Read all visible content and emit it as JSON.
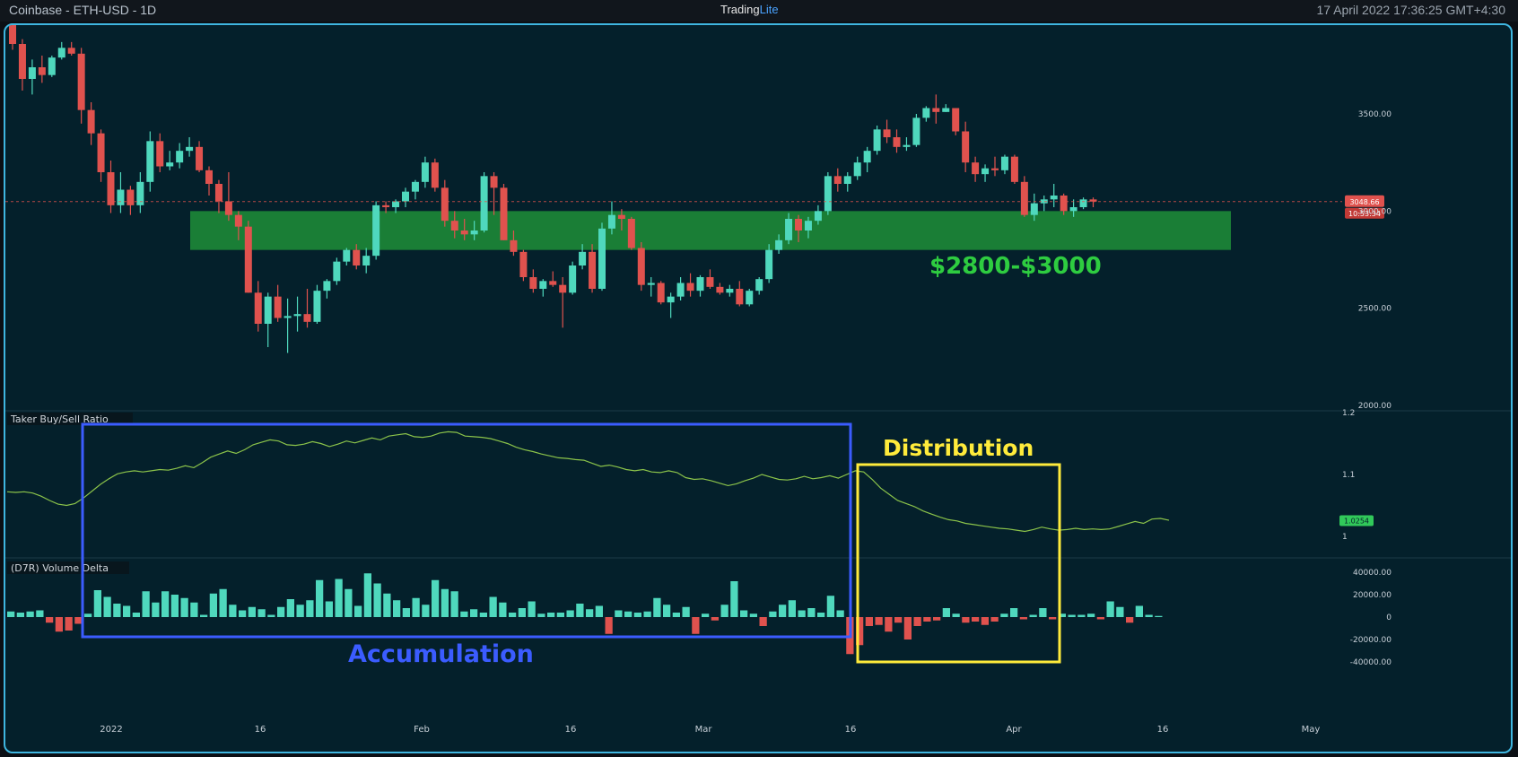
{
  "header": {
    "symbol": "Coinbase - ETH-USD - 1D",
    "brand_prefix": "Trading",
    "brand_suffix": "Lite",
    "datetime": "17 April 2022 17:36:25 GMT+4:30"
  },
  "chart_data": [
    {
      "type": "candlestick",
      "price_axis": {
        "min": 2000,
        "max": 4000,
        "ticks": [
          2000,
          2500,
          3000,
          3500
        ],
        "tick_labels": [
          "2000.00",
          "2500.00",
          "3000.00",
          "3500.00"
        ]
      },
      "time_axis": {
        "labels": [
          "2022",
          "16",
          "Feb",
          "16",
          "Mar",
          "16",
          "Apr",
          "16",
          "May"
        ]
      },
      "current_price": {
        "value": 3048.66,
        "label": "3048.66",
        "countdown": "10:53:34"
      },
      "support_zone": {
        "low": 2800,
        "high": 3000,
        "label": "$2800-$3000",
        "color": "#2ecc40"
      },
      "colors": {
        "up": "#4fd8bd",
        "down": "#e0524e"
      },
      "candles_ohlc": [
        [
          3975,
          4010,
          3830,
          3860
        ],
        [
          3860,
          3885,
          3620,
          3680
        ],
        [
          3680,
          3780,
          3600,
          3740
        ],
        [
          3740,
          3800,
          3660,
          3700
        ],
        [
          3700,
          3800,
          3690,
          3790
        ],
        [
          3790,
          3870,
          3780,
          3840
        ],
        [
          3840,
          3870,
          3800,
          3810
        ],
        [
          3810,
          3840,
          3450,
          3520
        ],
        [
          3520,
          3560,
          3340,
          3400
        ],
        [
          3400,
          3420,
          3150,
          3200
        ],
        [
          3200,
          3260,
          2990,
          3030
        ],
        [
          3030,
          3200,
          2990,
          3110
        ],
        [
          3110,
          3130,
          2980,
          3030
        ],
        [
          3030,
          3200,
          2990,
          3150
        ],
        [
          3150,
          3410,
          3100,
          3360
        ],
        [
          3360,
          3400,
          3200,
          3230
        ],
        [
          3230,
          3310,
          3210,
          3250
        ],
        [
          3250,
          3350,
          3220,
          3310
        ],
        [
          3310,
          3380,
          3280,
          3330
        ],
        [
          3330,
          3360,
          3200,
          3210
        ],
        [
          3210,
          3230,
          3080,
          3140
        ],
        [
          3140,
          3160,
          2990,
          3050
        ],
        [
          3050,
          3200,
          2950,
          2980
        ],
        [
          2980,
          3000,
          2850,
          2920
        ],
        [
          2920,
          2950,
          2580,
          2580
        ],
        [
          2580,
          2640,
          2380,
          2420
        ],
        [
          2420,
          2580,
          2300,
          2560
        ],
        [
          2560,
          2620,
          2430,
          2450
        ],
        [
          2450,
          2550,
          2270,
          2460
        ],
        [
          2460,
          2560,
          2380,
          2470
        ],
        [
          2470,
          2600,
          2400,
          2430
        ],
        [
          2430,
          2620,
          2420,
          2590
        ],
        [
          2590,
          2650,
          2550,
          2640
        ],
        [
          2640,
          2760,
          2620,
          2740
        ],
        [
          2740,
          2810,
          2720,
          2800
        ],
        [
          2800,
          2830,
          2700,
          2720
        ],
        [
          2720,
          2810,
          2680,
          2770
        ],
        [
          2770,
          3050,
          2750,
          3030
        ],
        [
          3030,
          3050,
          2990,
          3020
        ],
        [
          3020,
          3060,
          2990,
          3050
        ],
        [
          3050,
          3120,
          3020,
          3100
        ],
        [
          3100,
          3160,
          3060,
          3150
        ],
        [
          3150,
          3280,
          3120,
          3250
        ],
        [
          3250,
          3270,
          3100,
          3120
        ],
        [
          3120,
          3160,
          2920,
          2950
        ],
        [
          2950,
          3000,
          2860,
          2900
        ],
        [
          2900,
          2960,
          2850,
          2880
        ],
        [
          2880,
          2950,
          2850,
          2900
        ],
        [
          2900,
          3200,
          2890,
          3180
        ],
        [
          3180,
          3200,
          2980,
          3120
        ],
        [
          3120,
          3140,
          2850,
          2850
        ],
        [
          2850,
          2900,
          2770,
          2790
        ],
        [
          2790,
          2800,
          2640,
          2660
        ],
        [
          2660,
          2700,
          2580,
          2600
        ],
        [
          2600,
          2650,
          2560,
          2640
        ],
        [
          2640,
          2690,
          2610,
          2620
        ],
        [
          2620,
          2660,
          2400,
          2580
        ],
        [
          2580,
          2740,
          2570,
          2720
        ],
        [
          2720,
          2830,
          2700,
          2790
        ],
        [
          2790,
          2830,
          2580,
          2600
        ],
        [
          2600,
          2940,
          2590,
          2910
        ],
        [
          2910,
          3050,
          2880,
          2980
        ],
        [
          2980,
          3010,
          2900,
          2960
        ],
        [
          2960,
          2970,
          2800,
          2810
        ],
        [
          2810,
          2840,
          2590,
          2620
        ],
        [
          2620,
          2660,
          2560,
          2630
        ],
        [
          2630,
          2640,
          2520,
          2530
        ],
        [
          2530,
          2580,
          2450,
          2560
        ],
        [
          2560,
          2660,
          2540,
          2630
        ],
        [
          2630,
          2680,
          2560,
          2590
        ],
        [
          2590,
          2670,
          2560,
          2660
        ],
        [
          2660,
          2700,
          2600,
          2610
        ],
        [
          2610,
          2630,
          2570,
          2580
        ],
        [
          2580,
          2620,
          2560,
          2600
        ],
        [
          2600,
          2640,
          2510,
          2520
        ],
        [
          2520,
          2600,
          2510,
          2590
        ],
        [
          2590,
          2660,
          2570,
          2650
        ],
        [
          2650,
          2830,
          2630,
          2800
        ],
        [
          2800,
          2880,
          2780,
          2850
        ],
        [
          2850,
          2990,
          2830,
          2960
        ],
        [
          2960,
          2980,
          2840,
          2900
        ],
        [
          2900,
          2970,
          2860,
          2950
        ],
        [
          2950,
          3030,
          2930,
          3000
        ],
        [
          3000,
          3200,
          2980,
          3180
        ],
        [
          3180,
          3220,
          3100,
          3140
        ],
        [
          3140,
          3200,
          3100,
          3180
        ],
        [
          3180,
          3280,
          3160,
          3250
        ],
        [
          3250,
          3330,
          3200,
          3310
        ],
        [
          3310,
          3440,
          3290,
          3420
        ],
        [
          3420,
          3470,
          3350,
          3380
        ],
        [
          3380,
          3420,
          3300,
          3330
        ],
        [
          3330,
          3380,
          3310,
          3340
        ],
        [
          3340,
          3500,
          3330,
          3480
        ],
        [
          3480,
          3540,
          3460,
          3530
        ],
        [
          3530,
          3600,
          3450,
          3510
        ],
        [
          3510,
          3550,
          3510,
          3530
        ],
        [
          3530,
          3520,
          3390,
          3410
        ],
        [
          3410,
          3460,
          3200,
          3250
        ],
        [
          3250,
          3280,
          3150,
          3190
        ],
        [
          3190,
          3240,
          3150,
          3220
        ],
        [
          3220,
          3280,
          3180,
          3210
        ],
        [
          3210,
          3290,
          3190,
          3280
        ],
        [
          3280,
          3290,
          3140,
          3150
        ],
        [
          3150,
          3180,
          2970,
          2980
        ],
        [
          2980,
          3090,
          2950,
          3040
        ],
        [
          3040,
          3080,
          3000,
          3060
        ],
        [
          3060,
          3140,
          3020,
          3080
        ],
        [
          3080,
          3090,
          2980,
          3000
        ],
        [
          3000,
          3060,
          2970,
          3020
        ],
        [
          3020,
          3070,
          3010,
          3060
        ],
        [
          3060,
          3070,
          3020,
          3048.66
        ]
      ]
    },
    {
      "type": "line",
      "title": "Taker Buy/Sell Ratio",
      "y_axis": {
        "ticks": [
          1.0,
          1.1,
          1.2
        ],
        "tick_labels": [
          "1",
          "1.1",
          "1.2"
        ]
      },
      "last_value": {
        "value": 1.0254,
        "label": "1.0254"
      },
      "color": "#8bc34a",
      "values": [
        1.072,
        1.071,
        1.072,
        1.07,
        1.065,
        1.058,
        1.052,
        1.05,
        1.053,
        1.062,
        1.073,
        1.084,
        1.093,
        1.101,
        1.104,
        1.106,
        1.104,
        1.106,
        1.108,
        1.107,
        1.11,
        1.114,
        1.111,
        1.119,
        1.128,
        1.133,
        1.138,
        1.134,
        1.14,
        1.148,
        1.152,
        1.156,
        1.154,
        1.148,
        1.147,
        1.149,
        1.153,
        1.15,
        1.145,
        1.149,
        1.154,
        1.151,
        1.155,
        1.159,
        1.156,
        1.162,
        1.164,
        1.166,
        1.161,
        1.16,
        1.162,
        1.167,
        1.169,
        1.168,
        1.162,
        1.161,
        1.16,
        1.158,
        1.154,
        1.15,
        1.144,
        1.14,
        1.137,
        1.133,
        1.13,
        1.127,
        1.126,
        1.124,
        1.123,
        1.118,
        1.113,
        1.115,
        1.112,
        1.108,
        1.106,
        1.108,
        1.104,
        1.103,
        1.106,
        1.103,
        1.095,
        1.092,
        1.093,
        1.09,
        1.086,
        1.082,
        1.085,
        1.09,
        1.094,
        1.1,
        1.096,
        1.092,
        1.091,
        1.093,
        1.097,
        1.093,
        1.095,
        1.098,
        1.094,
        1.1,
        1.106,
        1.104,
        1.092,
        1.078,
        1.068,
        1.058,
        1.053,
        1.048,
        1.041,
        1.036,
        1.031,
        1.027,
        1.025,
        1.021,
        1.019,
        1.017,
        1.015,
        1.013,
        1.012,
        1.01,
        1.008,
        1.011,
        1.015,
        1.012,
        1.01,
        1.011,
        1.013,
        1.011,
        1.012,
        1.011,
        1.012,
        1.016,
        1.02,
        1.024,
        1.021,
        1.028,
        1.029,
        1.026
      ]
    },
    {
      "type": "bar",
      "title": "(D7R) Volume Delta",
      "y_axis": {
        "min": -45000,
        "max": 48000,
        "ticks": [
          -40000,
          -20000,
          0,
          20000,
          40000
        ],
        "tick_labels": [
          "-40000.00",
          "-20000.00",
          "0",
          "20000.00",
          "40000.00"
        ]
      },
      "colors": {
        "positive": "#4fd8bd",
        "negative": "#e0524e"
      },
      "values": [
        5000,
        4000,
        5000,
        6000,
        -5000,
        -13000,
        -12000,
        -6000,
        3000,
        24000,
        18000,
        12000,
        10000,
        4000,
        23000,
        13000,
        23000,
        20000,
        17000,
        13000,
        2000,
        21000,
        25000,
        11000,
        6000,
        9000,
        7000,
        2000,
        9000,
        16000,
        11000,
        15000,
        33000,
        14000,
        34000,
        25000,
        10000,
        39000,
        30000,
        21000,
        15000,
        8000,
        17000,
        11000,
        33000,
        25000,
        23000,
        5000,
        7000,
        4000,
        18000,
        13000,
        4000,
        8000,
        14000,
        3000,
        4000,
        4000,
        6000,
        12000,
        7000,
        10000,
        -15000,
        6000,
        5000,
        4000,
        5000,
        17000,
        11000,
        4000,
        9000,
        -15000,
        3000,
        -3000,
        11000,
        32000,
        6000,
        3000,
        -8000,
        5000,
        11000,
        15000,
        6000,
        8000,
        4000,
        19000,
        6000,
        -33000,
        -25000,
        -8000,
        -7000,
        -13000,
        -5000,
        -20000,
        -8000,
        -4000,
        -3000,
        8000,
        3000,
        -5000,
        -4000,
        -7000,
        -4000,
        3000,
        8000,
        -2000,
        2000,
        8000,
        -2000,
        3000,
        2000,
        2000,
        3000,
        -2000,
        14000,
        9000,
        -5000,
        10000,
        2000,
        1000
      ]
    },
    {
      "type": "annotations",
      "items": [
        {
          "label": "Accumulation",
          "color": "#3b5cff"
        },
        {
          "label": "Distribution",
          "color": "#ffeb3b"
        }
      ]
    }
  ]
}
